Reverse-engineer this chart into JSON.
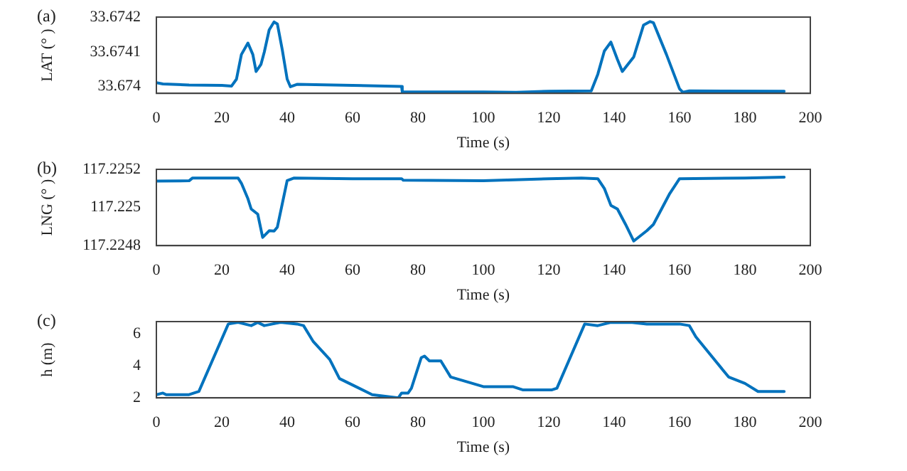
{
  "chart_data": [
    {
      "type": "line",
      "annotations": [
        "(a)"
      ],
      "xlabel": "Time (s)",
      "ylabel": "LAT (° )",
      "xlim": [
        0,
        200
      ],
      "xticks": [
        0,
        20,
        40,
        60,
        80,
        100,
        120,
        140,
        160,
        180,
        200
      ],
      "ylim": [
        33.67398,
        33.6742
      ],
      "yticks": [
        33.674,
        33.6741,
        33.6742
      ],
      "grid": false,
      "legend": false,
      "marker": "none",
      "line_style": "solid",
      "series": [
        {
          "color": "#0072bd",
          "x": [
            0,
            2,
            10,
            20,
            23,
            24.5,
            26,
            28,
            29.5,
            30.5,
            32,
            33,
            34.5,
            36,
            37,
            38.5,
            40,
            41,
            43,
            60,
            75,
            75.2,
            100,
            110,
            120,
            133,
            135,
            137,
            139,
            141,
            142.5,
            146,
            149,
            151,
            152,
            156,
            160,
            161,
            163,
            192
          ],
          "values": [
            33.674011,
            33.674007,
            33.674004,
            33.674003,
            33.674001,
            33.674021,
            33.674092,
            33.674125,
            33.674092,
            33.674043,
            33.674064,
            33.674099,
            33.674163,
            33.674186,
            33.67418,
            33.674106,
            33.674021,
            33.673999,
            33.674006,
            33.674003,
            33.674,
            33.673984,
            33.673984,
            33.673983,
            33.673986,
            33.673987,
            33.674035,
            33.674102,
            33.674128,
            33.674078,
            33.674043,
            33.674085,
            33.674177,
            33.674187,
            33.674184,
            33.674092,
            33.673993,
            33.673983,
            33.673987,
            33.673986
          ]
        }
      ]
    },
    {
      "type": "line",
      "annotations": [
        "(b)"
      ],
      "xlabel": "Time (s)",
      "ylabel": "LNG (° )",
      "xlim": [
        0,
        200
      ],
      "xticks": [
        0,
        20,
        40,
        60,
        80,
        100,
        120,
        140,
        160,
        180,
        200
      ],
      "ylim": [
        117.2248,
        117.2252
      ],
      "yticks": [
        117.2248,
        117.225,
        117.2252
      ],
      "grid": false,
      "legend": false,
      "marker": "none",
      "line_style": "solid",
      "series": [
        {
          "color": "#0072bd",
          "x": [
            0,
            10,
            11,
            25,
            26,
            28,
            29,
            31,
            32.5,
            34.5,
            36,
            37,
            38.5,
            40,
            42,
            60,
            75,
            75.5,
            100,
            120,
            130,
            135,
            137,
            139,
            141,
            143.5,
            146,
            148,
            150,
            152,
            157,
            160,
            180,
            192
          ],
          "values": [
            117.225138,
            117.22514,
            117.225154,
            117.225154,
            117.225127,
            117.225046,
            117.224992,
            117.224965,
            117.224843,
            117.224878,
            117.224876,
            117.224897,
            117.225019,
            117.225141,
            117.225154,
            117.225151,
            117.225151,
            117.225143,
            117.22514,
            117.225151,
            117.225154,
            117.225151,
            117.2251,
            117.225011,
            117.224992,
            117.224911,
            117.224824,
            117.224851,
            117.224878,
            117.224911,
            117.225073,
            117.225151,
            117.225154,
            117.225159
          ]
        }
      ]
    },
    {
      "type": "line",
      "annotations": [
        "(c)"
      ],
      "xlabel": "Time (s)",
      "ylabel": "h (m)",
      "xlim": [
        0,
        200
      ],
      "xticks": [
        0,
        20,
        40,
        60,
        80,
        100,
        120,
        140,
        160,
        180,
        200
      ],
      "ylim": [
        2,
        6.75
      ],
      "yticks": [
        2,
        4,
        6
      ],
      "grid": false,
      "legend": false,
      "marker": "none",
      "line_style": "solid",
      "series": [
        {
          "color": "#0072bd",
          "x": [
            0,
            2,
            3,
            10,
            11.5,
            13,
            22,
            25,
            29,
            31,
            33,
            38,
            43,
            45,
            48,
            53,
            56,
            60,
            66,
            70,
            74,
            75,
            77,
            78,
            81,
            82,
            83.5,
            87,
            90,
            95,
            100,
            103,
            105,
            109,
            112,
            121,
            122.5,
            131,
            135,
            139,
            145,
            150,
            160,
            163,
            165,
            175,
            180,
            184,
            190,
            192
          ],
          "values": [
            2.2,
            2.3,
            2.2,
            2.2,
            2.3,
            2.4,
            6.6,
            6.7,
            6.5,
            6.7,
            6.5,
            6.7,
            6.6,
            6.5,
            5.5,
            4.4,
            3.2,
            2.8,
            2.2,
            2.1,
            2.0,
            2.3,
            2.3,
            2.6,
            4.5,
            4.6,
            4.3,
            4.3,
            3.3,
            3.0,
            2.7,
            2.7,
            2.7,
            2.7,
            2.5,
            2.5,
            2.6,
            6.6,
            6.5,
            6.7,
            6.7,
            6.6,
            6.6,
            6.5,
            5.8,
            3.3,
            2.9,
            2.4,
            2.4,
            2.4
          ]
        }
      ]
    }
  ]
}
